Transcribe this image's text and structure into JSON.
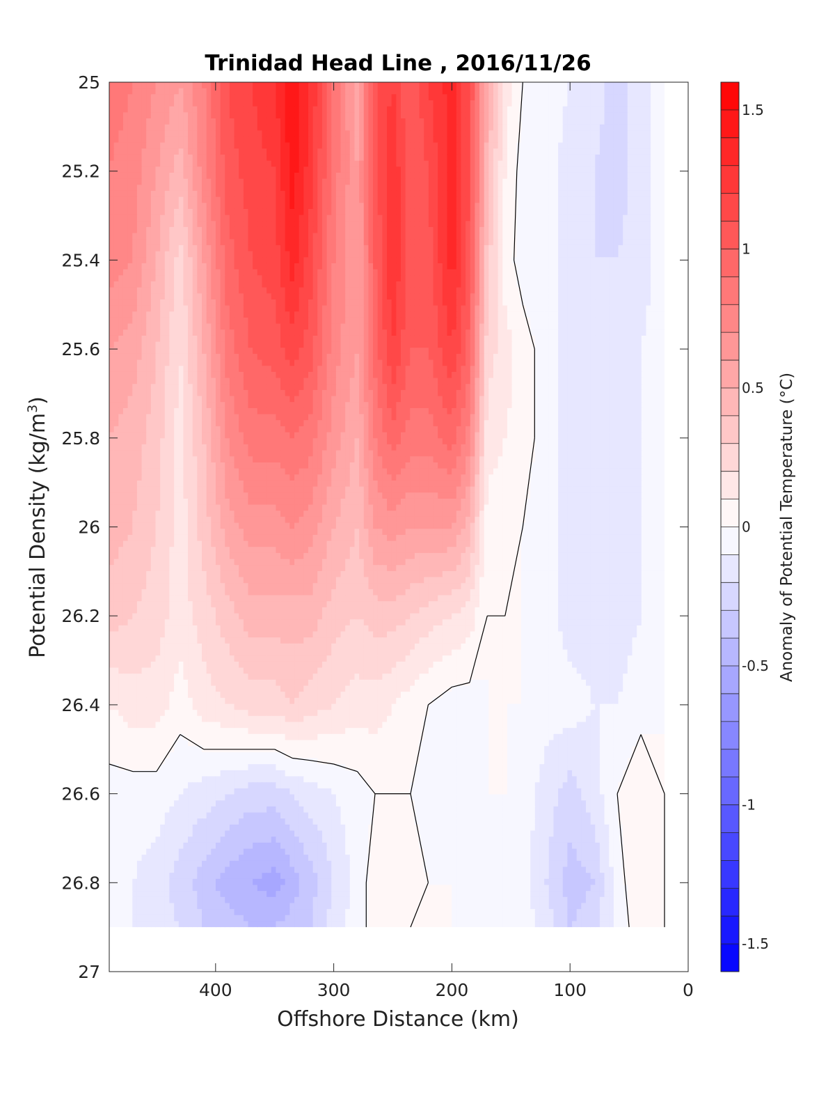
{
  "chart_data": {
    "type": "heatmap",
    "title": "Trinidad Head Line , 2016/11/26",
    "xlabel": "Offshore Distance (km)",
    "ylabel_main": "Potential Density (kg/m",
    "ylabel_sup": "3",
    "ylabel_close": ")",
    "colorbar_label": "Anomaly of Potential Temperature (°C)",
    "x_range": [
      490,
      0
    ],
    "x_reversed": true,
    "y_range": [
      25,
      27
    ],
    "y_reversed": true,
    "x_ticks": [
      400,
      300,
      200,
      100,
      0
    ],
    "x_tick_labels": [
      "400",
      "300",
      "200",
      "100",
      "0"
    ],
    "y_ticks": [
      25,
      25.2,
      25.4,
      25.6,
      25.8,
      26,
      26.2,
      26.4,
      26.6,
      26.8,
      27
    ],
    "y_tick_labels": [
      "25",
      "25.2",
      "25.4",
      "25.6",
      "25.8",
      "26",
      "26.2",
      "26.4",
      "26.6",
      "26.8",
      "27"
    ],
    "color_range": [
      -1.6,
      1.6
    ],
    "color_levels": 32,
    "colorbar_ticks": [
      1.5,
      1,
      0.5,
      0,
      -0.5,
      -1,
      -1.5
    ],
    "colorbar_tick_labels": [
      "1.5",
      "1",
      "0.5",
      "0",
      "-0.5",
      "-1",
      "-1.5"
    ],
    "colors": {
      "max": "#ff0000",
      "zero": "#ffffff",
      "min": "#0000ff",
      "contour": "#000000"
    },
    "grid": false,
    "data_extent": {
      "x": [
        490,
        20
      ],
      "y": [
        25,
        26.9
      ]
    },
    "x": [
      490,
      470,
      450,
      430,
      410,
      390,
      370,
      350,
      335,
      320,
      300,
      280,
      265,
      250,
      235,
      220,
      200,
      185,
      170,
      155,
      140,
      120,
      100,
      80,
      60,
      40,
      20
    ],
    "y": [
      25.0,
      25.2,
      25.4,
      25.6,
      25.8,
      26.0,
      26.2,
      26.4,
      26.6,
      26.8,
      26.9
    ],
    "values": [
      [
        0.85,
        0.8,
        0.7,
        0.6,
        0.8,
        1.1,
        1.2,
        1.3,
        1.5,
        1.3,
        0.9,
        0.55,
        1.1,
        1.2,
        1.0,
        1.2,
        1.35,
        1.1,
        0.5,
        0.15,
        0.0,
        -0.05,
        -0.1,
        -0.15,
        -0.25,
        -0.15,
        -0.05
      ],
      [
        0.8,
        0.75,
        0.6,
        0.45,
        0.75,
        1.05,
        1.15,
        1.2,
        1.45,
        1.25,
        0.85,
        0.6,
        1.05,
        1.3,
        1.0,
        1.1,
        1.35,
        1.1,
        0.45,
        0.1,
        -0.05,
        -0.05,
        -0.15,
        -0.2,
        -0.25,
        -0.15,
        -0.05
      ],
      [
        0.75,
        0.7,
        0.5,
        0.25,
        0.6,
        0.95,
        1.1,
        1.15,
        1.35,
        1.15,
        0.8,
        0.6,
        1.0,
        1.3,
        1.05,
        1.05,
        1.35,
        1.05,
        0.35,
        0.05,
        -0.05,
        -0.05,
        -0.15,
        -0.2,
        -0.2,
        -0.15,
        -0.05
      ],
      [
        0.6,
        0.55,
        0.4,
        0.2,
        0.5,
        0.85,
        1.0,
        1.05,
        1.15,
        1.05,
        0.75,
        0.6,
        0.95,
        1.2,
        1.0,
        1.0,
        1.2,
        0.95,
        0.25,
        0.15,
        0.05,
        -0.05,
        -0.15,
        -0.2,
        -0.15,
        -0.1,
        -0.05
      ],
      [
        0.5,
        0.45,
        0.35,
        0.15,
        0.4,
        0.7,
        0.85,
        0.85,
        0.9,
        0.85,
        0.65,
        0.5,
        0.8,
        0.95,
        0.85,
        0.85,
        0.95,
        0.75,
        0.15,
        0.1,
        0.05,
        -0.05,
        -0.15,
        -0.2,
        -0.15,
        -0.1,
        0.0
      ],
      [
        0.45,
        0.4,
        0.3,
        0.15,
        0.35,
        0.55,
        0.65,
        0.65,
        0.7,
        0.65,
        0.5,
        0.4,
        0.6,
        0.65,
        0.6,
        0.6,
        0.6,
        0.45,
        0.05,
        0.05,
        0.0,
        -0.05,
        -0.15,
        -0.2,
        -0.15,
        -0.1,
        0.0
      ],
      [
        0.35,
        0.3,
        0.25,
        0.15,
        0.25,
        0.35,
        0.45,
        0.45,
        0.45,
        0.45,
        0.35,
        0.3,
        0.35,
        0.35,
        0.3,
        0.25,
        0.2,
        0.15,
        0.0,
        0.0,
        0.0,
        -0.05,
        -0.15,
        -0.15,
        -0.15,
        -0.1,
        0.0
      ],
      [
        0.1,
        0.15,
        0.15,
        0.05,
        0.15,
        0.2,
        0.25,
        0.25,
        0.3,
        0.25,
        0.2,
        0.15,
        0.15,
        0.1,
        0.05,
        0.0,
        -0.05,
        -0.05,
        0.0,
        0.0,
        0.0,
        -0.05,
        -0.05,
        -0.1,
        -0.1,
        -0.05,
        0.0
      ],
      [
        -0.05,
        -0.05,
        -0.05,
        -0.1,
        -0.15,
        -0.2,
        -0.25,
        -0.25,
        -0.2,
        -0.15,
        -0.1,
        -0.05,
        0.0,
        0.0,
        0.0,
        -0.05,
        -0.05,
        0.0,
        0.0,
        0.0,
        -0.05,
        -0.15,
        -0.25,
        -0.15,
        0.0,
        0.1,
        0.0
      ],
      [
        -0.05,
        -0.1,
        -0.15,
        -0.25,
        -0.35,
        -0.45,
        -0.5,
        -0.55,
        -0.45,
        -0.35,
        -0.2,
        -0.05,
        0.05,
        0.1,
        0.05,
        0.0,
        0.0,
        -0.05,
        -0.1,
        -0.05,
        -0.05,
        -0.2,
        -0.35,
        -0.3,
        -0.05,
        0.1,
        0.0
      ],
      [
        -0.05,
        -0.1,
        -0.15,
        -0.2,
        -0.3,
        -0.35,
        -0.4,
        -0.4,
        -0.35,
        -0.3,
        -0.15,
        -0.05,
        0.05,
        0.05,
        0.0,
        0.0,
        0.0,
        -0.05,
        -0.1,
        -0.05,
        -0.05,
        -0.15,
        -0.3,
        -0.25,
        -0.05,
        0.05,
        0.0
      ]
    ]
  }
}
